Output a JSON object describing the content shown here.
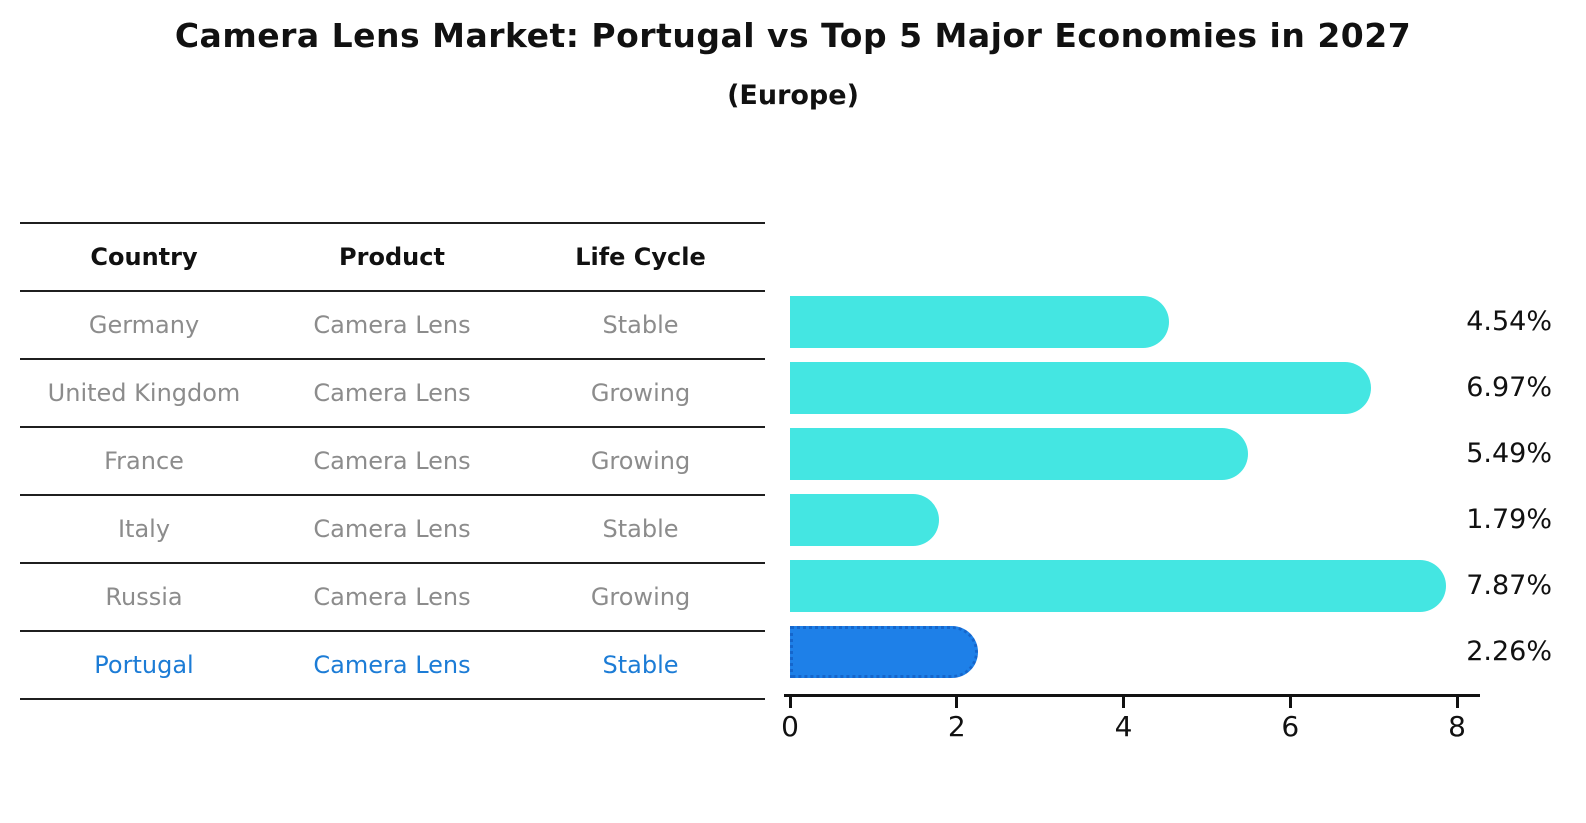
{
  "title": "Camera Lens Market: Portugal vs Top 5 Major Economies in 2027",
  "subtitle": "(Europe)",
  "table": {
    "headers": [
      "Country",
      "Product",
      "Life Cycle"
    ],
    "rows": [
      {
        "country": "Germany",
        "product": "Camera Lens",
        "life_cycle": "Stable",
        "highlight": false
      },
      {
        "country": "United Kingdom",
        "product": "Camera Lens",
        "life_cycle": "Growing",
        "highlight": false
      },
      {
        "country": "France",
        "product": "Camera Lens",
        "life_cycle": "Growing",
        "highlight": false
      },
      {
        "country": "Italy",
        "product": "Camera Lens",
        "life_cycle": "Stable",
        "highlight": false
      },
      {
        "country": "Russia",
        "product": "Camera Lens",
        "life_cycle": "Growing",
        "highlight": false
      },
      {
        "country": "Portugal",
        "product": "Camera Lens",
        "life_cycle": "Stable",
        "highlight": true
      }
    ]
  },
  "chart_data": {
    "type": "bar",
    "orientation": "horizontal",
    "title": "Camera Lens Market: Portugal vs Top 5 Major Economies in 2027",
    "subtitle": "(Europe)",
    "categories": [
      "Germany",
      "United Kingdom",
      "France",
      "Italy",
      "Russia",
      "Portugal"
    ],
    "values": [
      4.54,
      6.97,
      5.49,
      1.79,
      7.87,
      2.26
    ],
    "value_labels": [
      "4.54%",
      "6.97%",
      "5.49%",
      "1.79%",
      "7.87%",
      "2.26%"
    ],
    "unit": "%",
    "xlim": [
      0,
      8.2
    ],
    "xticks": [
      0,
      2,
      4,
      6,
      8
    ],
    "grid": false,
    "legend": false,
    "highlight_index": 5
  },
  "colors": {
    "bar": "#44E6E2",
    "highlight_bar": "#1E80E8",
    "highlight_border": "#1566CC",
    "row_text": "#8c8c8c",
    "highlight_text": "#1C7CD6",
    "axis": "#111111"
  }
}
